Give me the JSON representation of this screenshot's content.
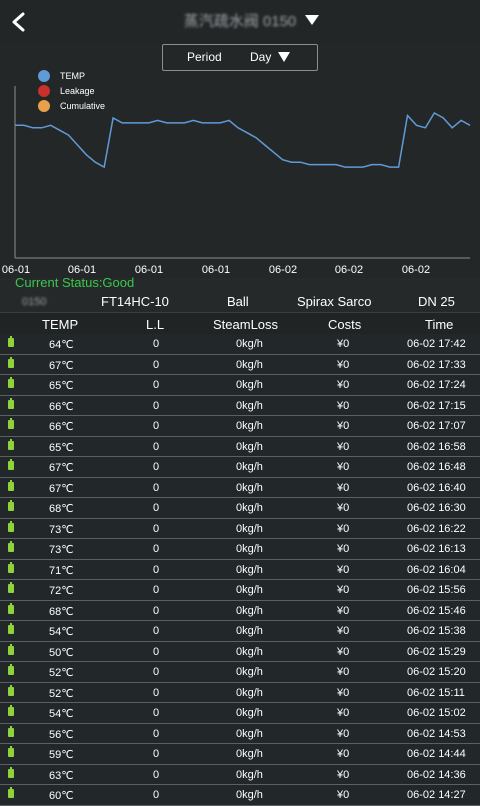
{
  "header": {
    "title": "蒸汽疏水阀 0150",
    "back_icon": "back-chevron-icon",
    "dropdown_icon": "caret-down-icon"
  },
  "period": {
    "label": "Period",
    "value": "Day"
  },
  "legend": [
    {
      "name": "TEMP",
      "color": "#5f9bd6"
    },
    {
      "name": "Leakage",
      "color": "#c9302c"
    },
    {
      "name": "Cumulative",
      "color": "#e8a14b"
    }
  ],
  "chart_data": {
    "type": "line",
    "x_tick_labels": [
      "06-01",
      "06-01",
      "06-01",
      "06-01",
      "06-02",
      "06-02",
      "06-02"
    ],
    "series": [
      {
        "name": "TEMP",
        "color": "#5f9bd6",
        "values": [
          74,
          74,
          73,
          73,
          74,
          72,
          70,
          66,
          62,
          59,
          57,
          77,
          75,
          75,
          75,
          75,
          76,
          75,
          75,
          75,
          76,
          75,
          75,
          75,
          76,
          73,
          71,
          69,
          66,
          63,
          60,
          59,
          59,
          58,
          58,
          58,
          58,
          57,
          57,
          57,
          58,
          58,
          57,
          57,
          78,
          74,
          73,
          79,
          77,
          73,
          76,
          74
        ]
      }
    ],
    "ylim": [
      20,
      90
    ],
    "grid": false
  },
  "status": {
    "text": "Current Status:Good"
  },
  "device": {
    "id": "0150",
    "model": "FT14HC-10",
    "type": "Ball",
    "brand": "Spirax Sarco",
    "size": "DN 25"
  },
  "table": {
    "headers": {
      "temp": "TEMP",
      "ll": "L.L",
      "loss": "SteamLoss",
      "cost": "Costs",
      "time": "Time"
    },
    "rows": [
      {
        "temp": "64℃",
        "ll": "0",
        "loss": "0kg/h",
        "cost": "¥0",
        "time": "06-02 17:42"
      },
      {
        "temp": "67℃",
        "ll": "0",
        "loss": "0kg/h",
        "cost": "¥0",
        "time": "06-02 17:33"
      },
      {
        "temp": "65℃",
        "ll": "0",
        "loss": "0kg/h",
        "cost": "¥0",
        "time": "06-02 17:24"
      },
      {
        "temp": "66℃",
        "ll": "0",
        "loss": "0kg/h",
        "cost": "¥0",
        "time": "06-02 17:15"
      },
      {
        "temp": "66℃",
        "ll": "0",
        "loss": "0kg/h",
        "cost": "¥0",
        "time": "06-02 17:07"
      },
      {
        "temp": "65℃",
        "ll": "0",
        "loss": "0kg/h",
        "cost": "¥0",
        "time": "06-02 16:58"
      },
      {
        "temp": "67℃",
        "ll": "0",
        "loss": "0kg/h",
        "cost": "¥0",
        "time": "06-02 16:48"
      },
      {
        "temp": "67℃",
        "ll": "0",
        "loss": "0kg/h",
        "cost": "¥0",
        "time": "06-02 16:40"
      },
      {
        "temp": "68℃",
        "ll": "0",
        "loss": "0kg/h",
        "cost": "¥0",
        "time": "06-02 16:30"
      },
      {
        "temp": "73℃",
        "ll": "0",
        "loss": "0kg/h",
        "cost": "¥0",
        "time": "06-02 16:22"
      },
      {
        "temp": "73℃",
        "ll": "0",
        "loss": "0kg/h",
        "cost": "¥0",
        "time": "06-02 16:13"
      },
      {
        "temp": "71℃",
        "ll": "0",
        "loss": "0kg/h",
        "cost": "¥0",
        "time": "06-02 16:04"
      },
      {
        "temp": "72℃",
        "ll": "0",
        "loss": "0kg/h",
        "cost": "¥0",
        "time": "06-02 15:56"
      },
      {
        "temp": "68℃",
        "ll": "0",
        "loss": "0kg/h",
        "cost": "¥0",
        "time": "06-02 15:46"
      },
      {
        "temp": "54℃",
        "ll": "0",
        "loss": "0kg/h",
        "cost": "¥0",
        "time": "06-02 15:38"
      },
      {
        "temp": "50℃",
        "ll": "0",
        "loss": "0kg/h",
        "cost": "¥0",
        "time": "06-02 15:29"
      },
      {
        "temp": "52℃",
        "ll": "0",
        "loss": "0kg/h",
        "cost": "¥0",
        "time": "06-02 15:20"
      },
      {
        "temp": "52℃",
        "ll": "0",
        "loss": "0kg/h",
        "cost": "¥0",
        "time": "06-02 15:11"
      },
      {
        "temp": "54℃",
        "ll": "0",
        "loss": "0kg/h",
        "cost": "¥0",
        "time": "06-02 15:02"
      },
      {
        "temp": "56℃",
        "ll": "0",
        "loss": "0kg/h",
        "cost": "¥0",
        "time": "06-02 14:53"
      },
      {
        "temp": "59℃",
        "ll": "0",
        "loss": "0kg/h",
        "cost": "¥0",
        "time": "06-02 14:44"
      },
      {
        "temp": "63℃",
        "ll": "0",
        "loss": "0kg/h",
        "cost": "¥0",
        "time": "06-02 14:36"
      },
      {
        "temp": "60℃",
        "ll": "0",
        "loss": "0kg/h",
        "cost": "¥0",
        "time": "06-02 14:27"
      }
    ]
  }
}
